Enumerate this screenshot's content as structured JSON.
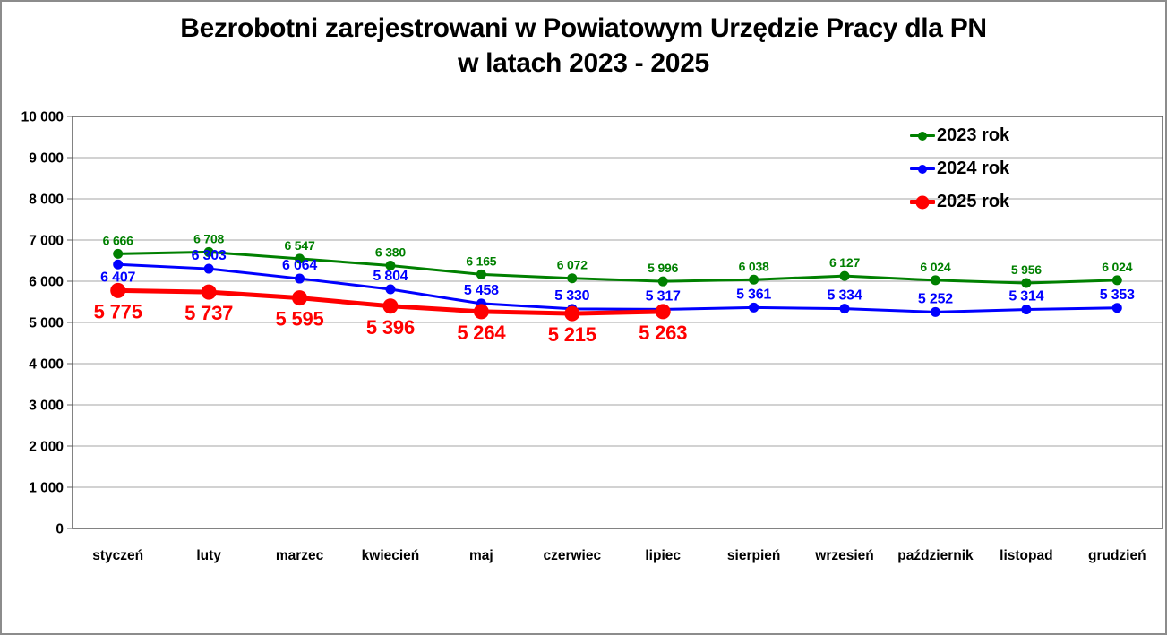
{
  "title": {
    "line1": "Bezrobotni zarejestrowani w Powiatowym Urzędzie Pracy dla PN",
    "line2": "w latach 2023 - 2025"
  },
  "colors": {
    "series_2023": "#008000",
    "series_2024": "#0000FF",
    "series_2025": "#FF0000",
    "gridline": "#A6A6A6",
    "plot_border": "#595959",
    "frame_border": "#8C8C8C",
    "axis_text": "#000000",
    "background": "#FFFFFF"
  },
  "chart_data": {
    "type": "line",
    "title": "Bezrobotni zarejestrowani w Powiatowym Urzędzie Pracy dla PN w latach 2023 - 2025",
    "xlabel": "",
    "ylabel": "",
    "categories": [
      "styczeń",
      "luty",
      "marzec",
      "kwiecień",
      "maj",
      "czerwiec",
      "lipiec",
      "sierpień",
      "wrzesień",
      "październik",
      "listopad",
      "grudzień"
    ],
    "series": [
      {
        "name": "2023 rok",
        "color": "#008000",
        "values": [
          6666,
          6708,
          6547,
          6380,
          6165,
          6072,
          5996,
          6038,
          6127,
          6024,
          5956,
          6024
        ]
      },
      {
        "name": "2024 rok",
        "color": "#0000FF",
        "values": [
          6407,
          6303,
          6064,
          5804,
          5458,
          5330,
          5317,
          5361,
          5334,
          5252,
          5314,
          5353
        ]
      },
      {
        "name": "2025 rok",
        "color": "#FF0000",
        "values": [
          5775,
          5737,
          5595,
          5396,
          5264,
          5215,
          5263,
          null,
          null,
          null,
          null,
          null
        ]
      }
    ],
    "ylim": [
      0,
      10000
    ],
    "ytick_step": 1000,
    "ytick_labels": [
      "0",
      "1 000",
      "2 000",
      "3 000",
      "4 000",
      "5 000",
      "6 000",
      "7 000",
      "8 000",
      "9 000",
      "10 000"
    ],
    "grid": "horizontal",
    "legend_position": "upper-right-inside",
    "data_labels": true
  }
}
